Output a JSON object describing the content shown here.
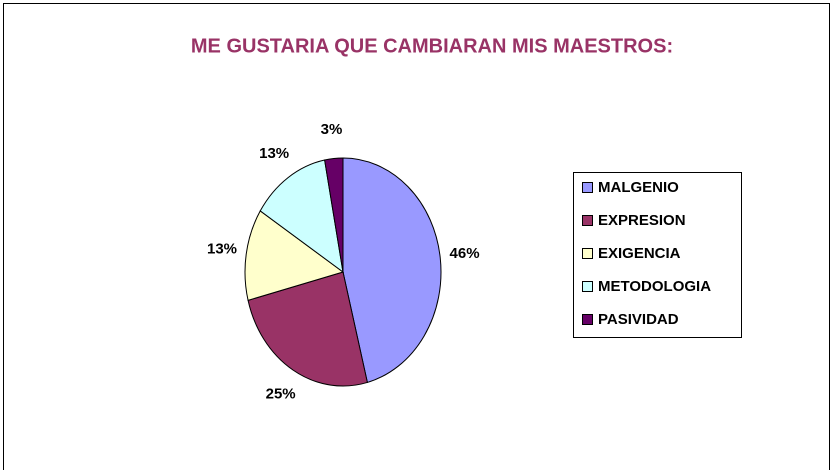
{
  "chart_data": {
    "type": "pie",
    "title": "ME GUSTARIA QUE CAMBIARAN MIS MAESTROS:",
    "categories": [
      "MALGENIO",
      "EXPRESION",
      "EXIGENCIA",
      "METODOLOGIA",
      "PASIVIDAD"
    ],
    "values": [
      46,
      25,
      13,
      13,
      3
    ],
    "value_labels": [
      "46%",
      "25%",
      "13%",
      "13%",
      "3%"
    ],
    "colors": [
      "#9999ff",
      "#993366",
      "#ffffcc",
      "#ccffff",
      "#660066"
    ],
    "legend": "right"
  }
}
